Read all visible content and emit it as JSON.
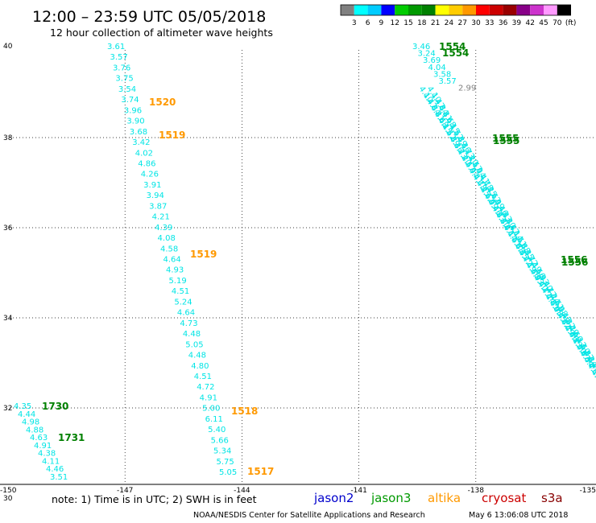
{
  "header": {
    "title": "12:00 – 23:59 UTC 05/05/2018",
    "subtitle": "12 hour collection of altimeter wave heights"
  },
  "legend": {
    "colors": [
      "#808080",
      "#00ffff",
      "#00ccff",
      "#0000ff",
      "#00cc00",
      "#009900",
      "#008000",
      "#ffff00",
      "#ffcc00",
      "#ff9900",
      "#ff0000",
      "#cc0000",
      "#990000",
      "#880088",
      "#cc33cc",
      "#ff99ff",
      "#000000"
    ],
    "labels": [
      "3",
      "6",
      "9",
      "12",
      "15",
      "18",
      "21",
      "24",
      "27",
      "30",
      "33",
      "36",
      "39",
      "42",
      "45",
      "70",
      "(ft)"
    ]
  },
  "axes": {
    "x_ticks": [
      "-150",
      "-147",
      "-144",
      "-141",
      "-138",
      "-135"
    ],
    "y_ticks": [
      "40",
      "38",
      "36",
      "34",
      "32",
      "30"
    ],
    "lon_range": [
      -150,
      -135
    ],
    "lat_range": [
      30,
      40
    ]
  },
  "tracks": {
    "altika_center": {
      "color": "#00e5e5",
      "values": [
        "3.61",
        "3.57",
        "3.76",
        "3.75",
        "3.54",
        "3.74",
        "3.96",
        "3.90",
        "3.68",
        "3.42",
        "4.02",
        "4.86",
        "4.26",
        "3.91",
        "3.94",
        "3.87",
        "4.21",
        "4.39",
        "4.08",
        "4.58",
        "4.64",
        "4.93",
        "5.19",
        "4.51",
        "5.24",
        "4.64",
        "4.73",
        "4.48",
        "5.05",
        "4.48",
        "4.80",
        "4.51",
        "4.72",
        "4.91",
        "5.00",
        "6.11",
        "5.40",
        "5.66",
        "5.34",
        "5.75",
        "5.05"
      ]
    },
    "jason3_left": {
      "color": "#00e5e5",
      "values": [
        "4.35",
        "4.44",
        "4.98",
        "4.88",
        "4.63",
        "4.91",
        "4.38",
        "4.11",
        "4.46",
        "3.51"
      ]
    },
    "jason3_right": {
      "color": "#00e5e5",
      "visible_values": [
        "3.46",
        "3.24",
        "3.69",
        "4.04",
        "3.58",
        "3.57",
        "2.99"
      ],
      "outlier_color": "#808080"
    }
  },
  "time_labels": [
    {
      "text": "1520",
      "color": "#ff9900"
    },
    {
      "text": "1519",
      "color": "#ff9900"
    },
    {
      "text": "1519",
      "color": "#ff9900"
    },
    {
      "text": "1518",
      "color": "#ff9900"
    },
    {
      "text": "1517",
      "color": "#ff9900"
    },
    {
      "text": "1730",
      "color": "#008000"
    },
    {
      "text": "1731",
      "color": "#008000"
    },
    {
      "text": "1554",
      "color": "#008000"
    },
    {
      "text": "1554",
      "color": "#008000"
    },
    {
      "text": "1555",
      "color": "#008000"
    },
    {
      "text": "1556",
      "color": "#008000"
    }
  ],
  "footer": {
    "note": "note:  1) Time is in UTC;  2) SWH is in feet",
    "satellites": [
      {
        "name": "jason2",
        "color": "#0000cc"
      },
      {
        "name": "jason3",
        "color": "#009900"
      },
      {
        "name": "altika",
        "color": "#ff9900"
      },
      {
        "name": "cryosat",
        "color": "#cc0000"
      },
      {
        "name": "s3a",
        "color": "#880000"
      }
    ],
    "credit": "NOAA/NESDIS Center for Satellite Applications and Research",
    "timestamp": "May  6 13:06:08 UTC 2018"
  }
}
